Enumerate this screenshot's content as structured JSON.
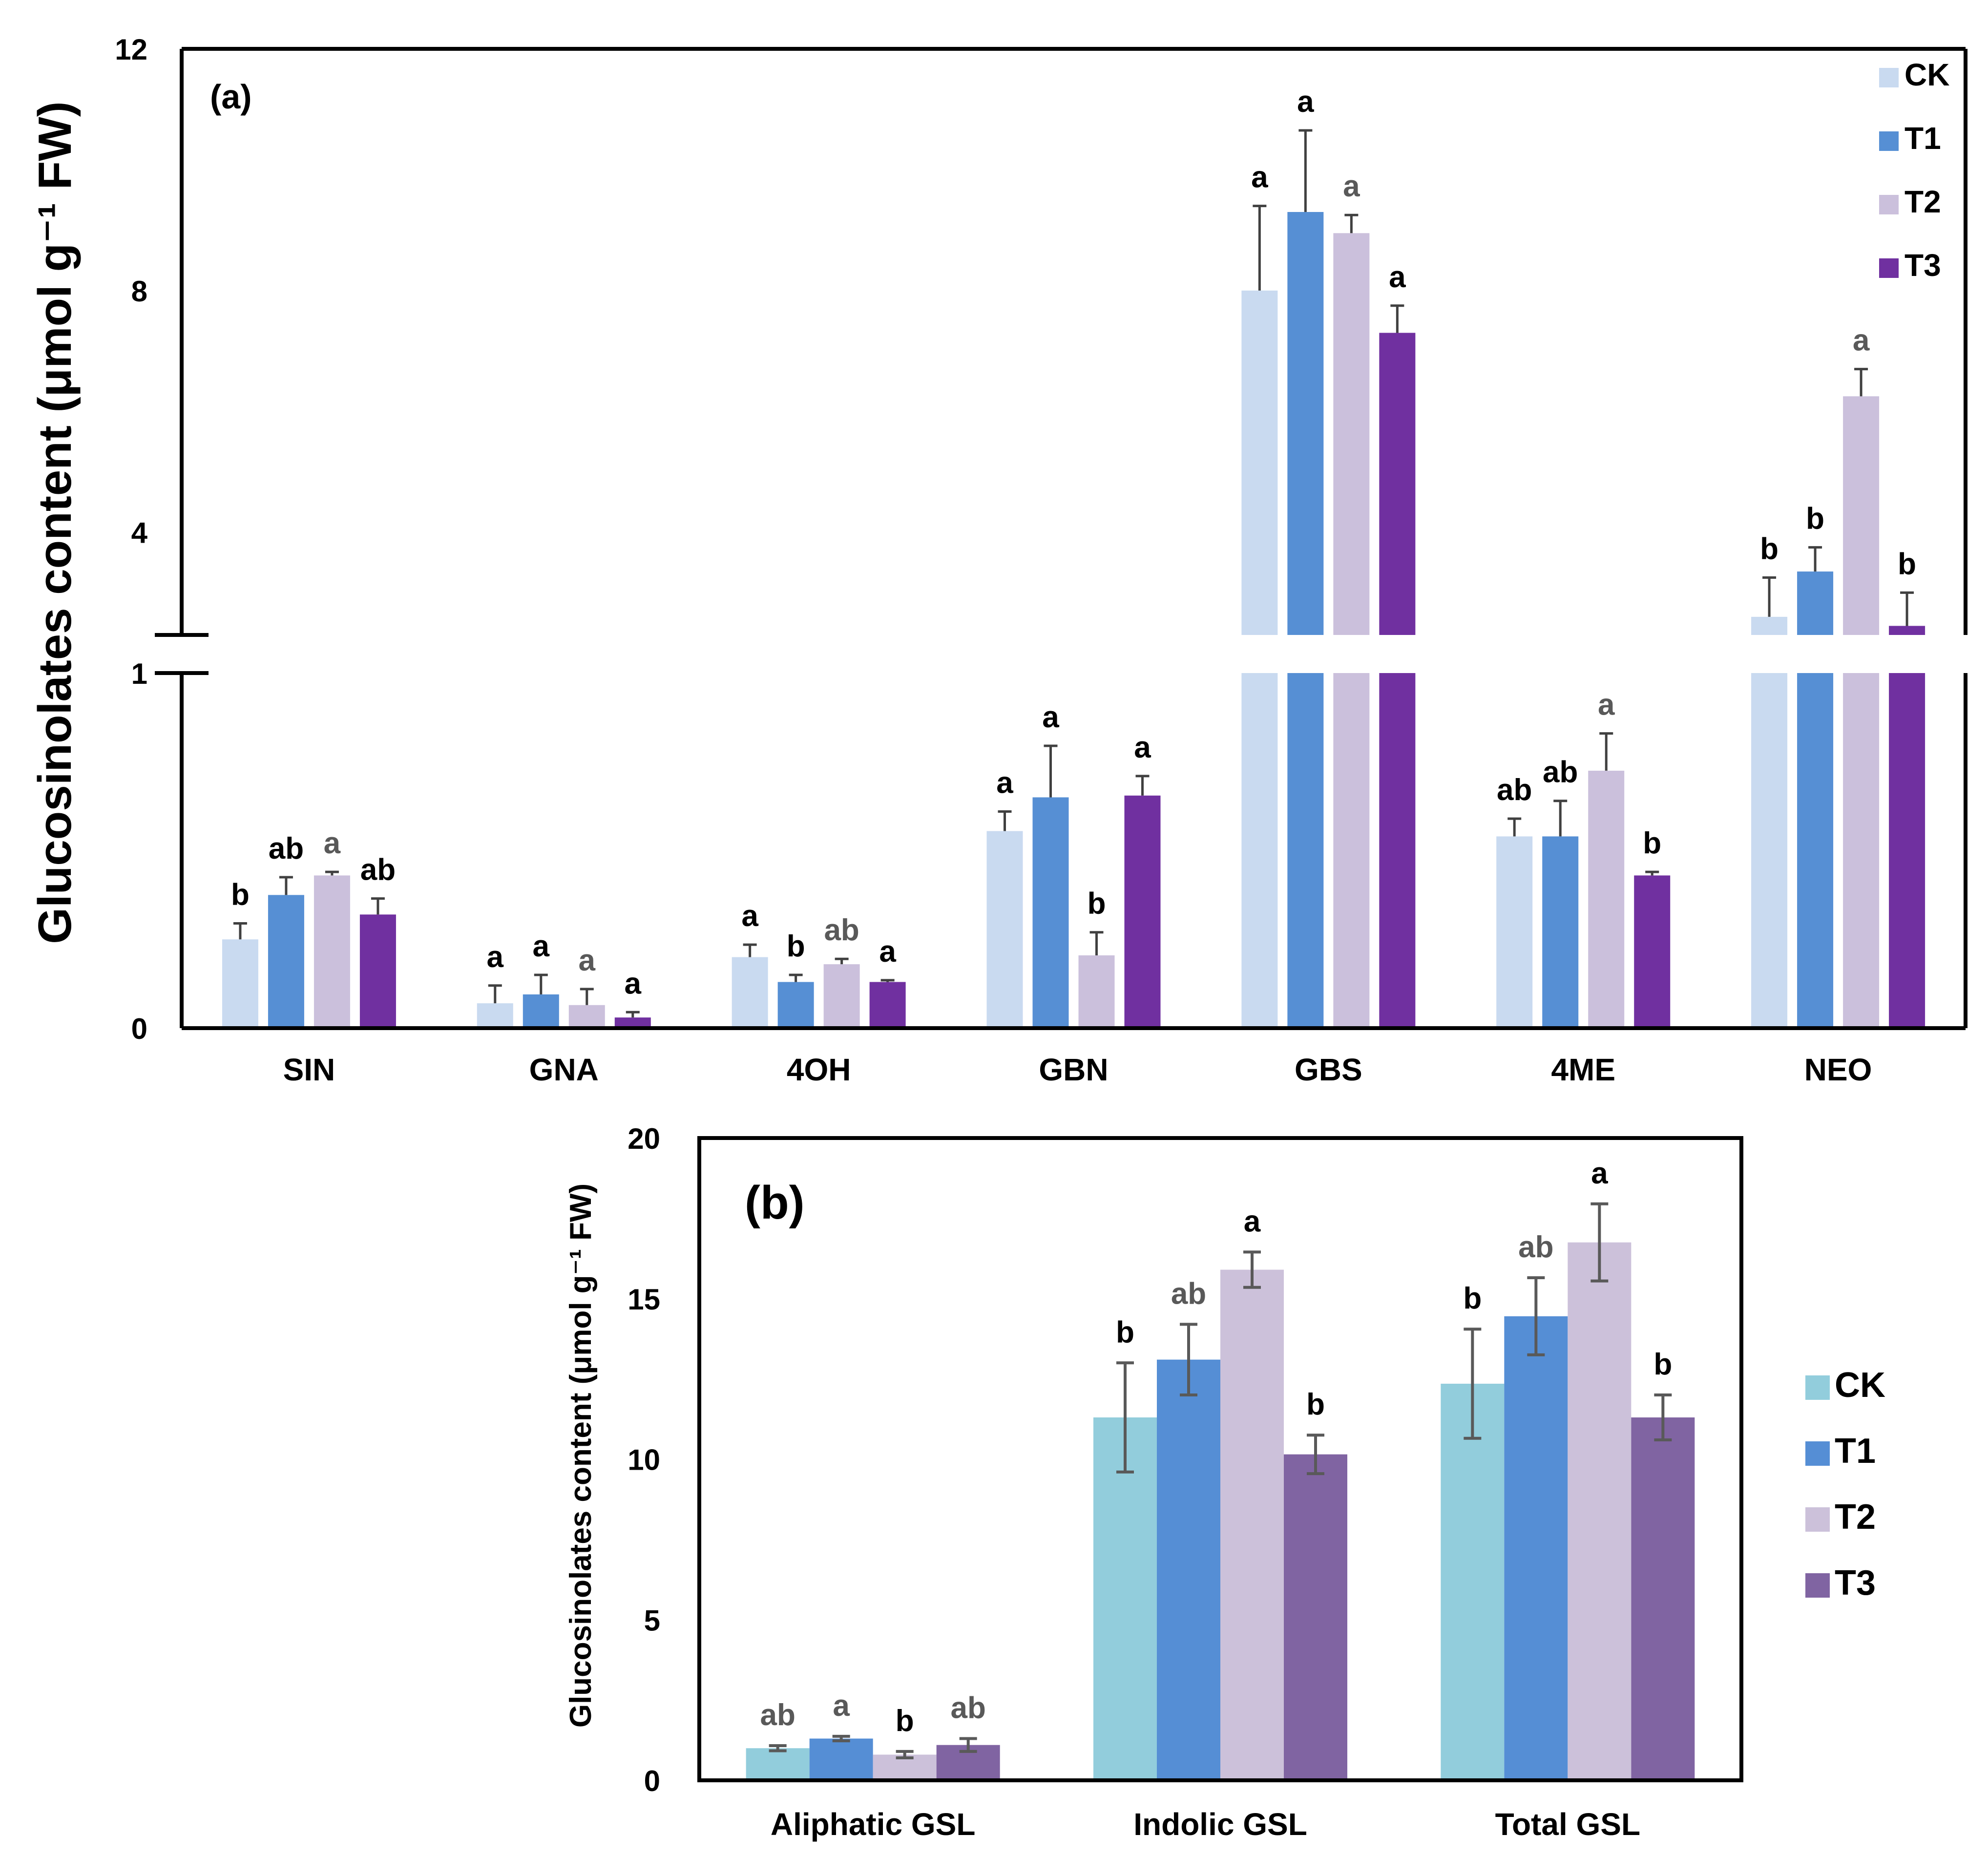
{
  "chart_data": [
    {
      "type": "bar",
      "panel_label": "(a)",
      "title": "",
      "ylabel": "Glucosinolates content (μmol g⁻¹ FW)",
      "xlabel": "",
      "categories": [
        "SIN",
        "GNA",
        "4OH",
        "GBN",
        "GBS",
        "4ME",
        "NEO"
      ],
      "y_axis": "broken",
      "ylim_lower": [
        0,
        1
      ],
      "yticks_lower": [
        "0",
        "1"
      ],
      "ylim_upper": [
        2.3,
        12
      ],
      "yticks_upper": [
        "4",
        "8",
        "12"
      ],
      "legend_position": "top-right",
      "series": [
        {
          "name": "CK",
          "color": "#c9daf0",
          "values": [
            0.25,
            0.07,
            0.2,
            0.555,
            8.0,
            0.54,
            2.6
          ],
          "errors": [
            0.045,
            0.05,
            0.035,
            0.055,
            1.4,
            0.05,
            0.65
          ],
          "letters": [
            "b",
            "a",
            "a",
            "a",
            "a",
            "ab",
            "b"
          ]
        },
        {
          "name": "T1",
          "color": "#568fd4",
          "values": [
            0.375,
            0.095,
            0.13,
            0.65,
            9.3,
            0.54,
            3.35
          ],
          "errors": [
            0.05,
            0.055,
            0.02,
            0.145,
            1.35,
            0.1,
            0.4
          ],
          "letters": [
            "ab",
            "a",
            "b",
            "a",
            "a",
            "ab",
            "b"
          ]
        },
        {
          "name": "T2",
          "color": "#cbc0dc",
          "values": [
            0.43,
            0.065,
            0.18,
            0.205,
            8.95,
            0.725,
            6.25
          ],
          "errors": [
            0.01,
            0.045,
            0.015,
            0.065,
            0.3,
            0.105,
            0.45
          ],
          "letters": [
            "a",
            "a",
            "ab",
            "b",
            "a",
            "a",
            "a"
          ]
        },
        {
          "name": "T3",
          "color": "#7030a0",
          "values": [
            0.32,
            0.03,
            0.13,
            0.655,
            7.3,
            0.43,
            2.45
          ],
          "errors": [
            0.045,
            0.015,
            0.005,
            0.055,
            0.45,
            0.01,
            0.55
          ],
          "letters": [
            "ab",
            "a",
            "a",
            "a",
            "a",
            "b",
            "b"
          ]
        }
      ]
    },
    {
      "type": "bar",
      "panel_label": "(b)",
      "title": "",
      "ylabel": "Glucosinolates content (μmol g⁻¹ FW)",
      "xlabel": "",
      "categories": [
        "Aliphatic GSL",
        "Indolic GSL",
        "Total GSL"
      ],
      "ylim": [
        0,
        20
      ],
      "yticks": [
        "0",
        "5",
        "10",
        "15",
        "20"
      ],
      "legend_position": "right",
      "series": [
        {
          "name": "CK",
          "color": "#92cddc",
          "values": [
            1.0,
            11.3,
            12.35
          ],
          "errors": [
            0.08,
            1.7,
            1.7
          ],
          "letters": [
            "ab",
            "b",
            "b"
          ]
        },
        {
          "name": "T1",
          "color": "#558ed5",
          "values": [
            1.3,
            13.1,
            14.45
          ],
          "errors": [
            0.07,
            1.1,
            1.2
          ],
          "letters": [
            "a",
            "ab",
            "ab"
          ]
        },
        {
          "name": "T2",
          "color": "#ccc1da",
          "values": [
            0.8,
            15.9,
            16.75
          ],
          "errors": [
            0.1,
            0.55,
            1.2
          ],
          "letters": [
            "b",
            "a",
            "a"
          ]
        },
        {
          "name": "T3",
          "color": "#8064a2",
          "values": [
            1.1,
            10.15,
            11.3
          ],
          "errors": [
            0.2,
            0.6,
            0.7
          ],
          "letters": [
            "ab",
            "b",
            "b"
          ]
        }
      ]
    }
  ]
}
